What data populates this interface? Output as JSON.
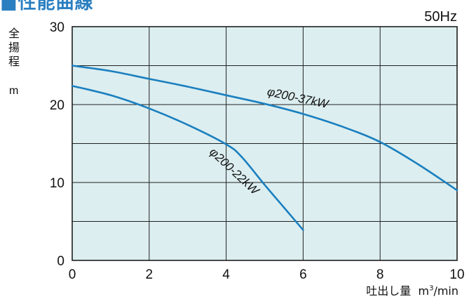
{
  "header": {
    "title": "■性能曲線",
    "frequency": "50Hz"
  },
  "chart_data": {
    "type": "line",
    "xlabel": "吐出し量",
    "xunit": "m3/min",
    "ylabel": "全揚程",
    "yunit": "m",
    "xlim": [
      0,
      10
    ],
    "ylim": [
      0,
      30
    ],
    "x_ticks": [
      "0",
      "2",
      "4",
      "6",
      "8",
      "10"
    ],
    "y_ticks": [
      "0",
      "10",
      "20",
      "30"
    ],
    "grid": true,
    "background": "#dceef0",
    "line_color": "#1a7fbf",
    "series": [
      {
        "name": "φ200-37kW",
        "x": [
          0,
          1,
          2,
          3,
          4,
          5,
          6,
          7,
          8,
          9,
          10
        ],
        "y": [
          25,
          24.3,
          23.3,
          22.3,
          21.2,
          20.1,
          18.8,
          17.2,
          15.2,
          12.3,
          9
        ]
      },
      {
        "name": "φ200-22kW",
        "x": [
          0,
          1,
          2,
          3,
          4,
          4.4,
          5,
          5.5,
          6
        ],
        "y": [
          22.4,
          21.2,
          19.5,
          17.4,
          14.9,
          13.3,
          9.7,
          6.8,
          3.9
        ]
      }
    ]
  }
}
